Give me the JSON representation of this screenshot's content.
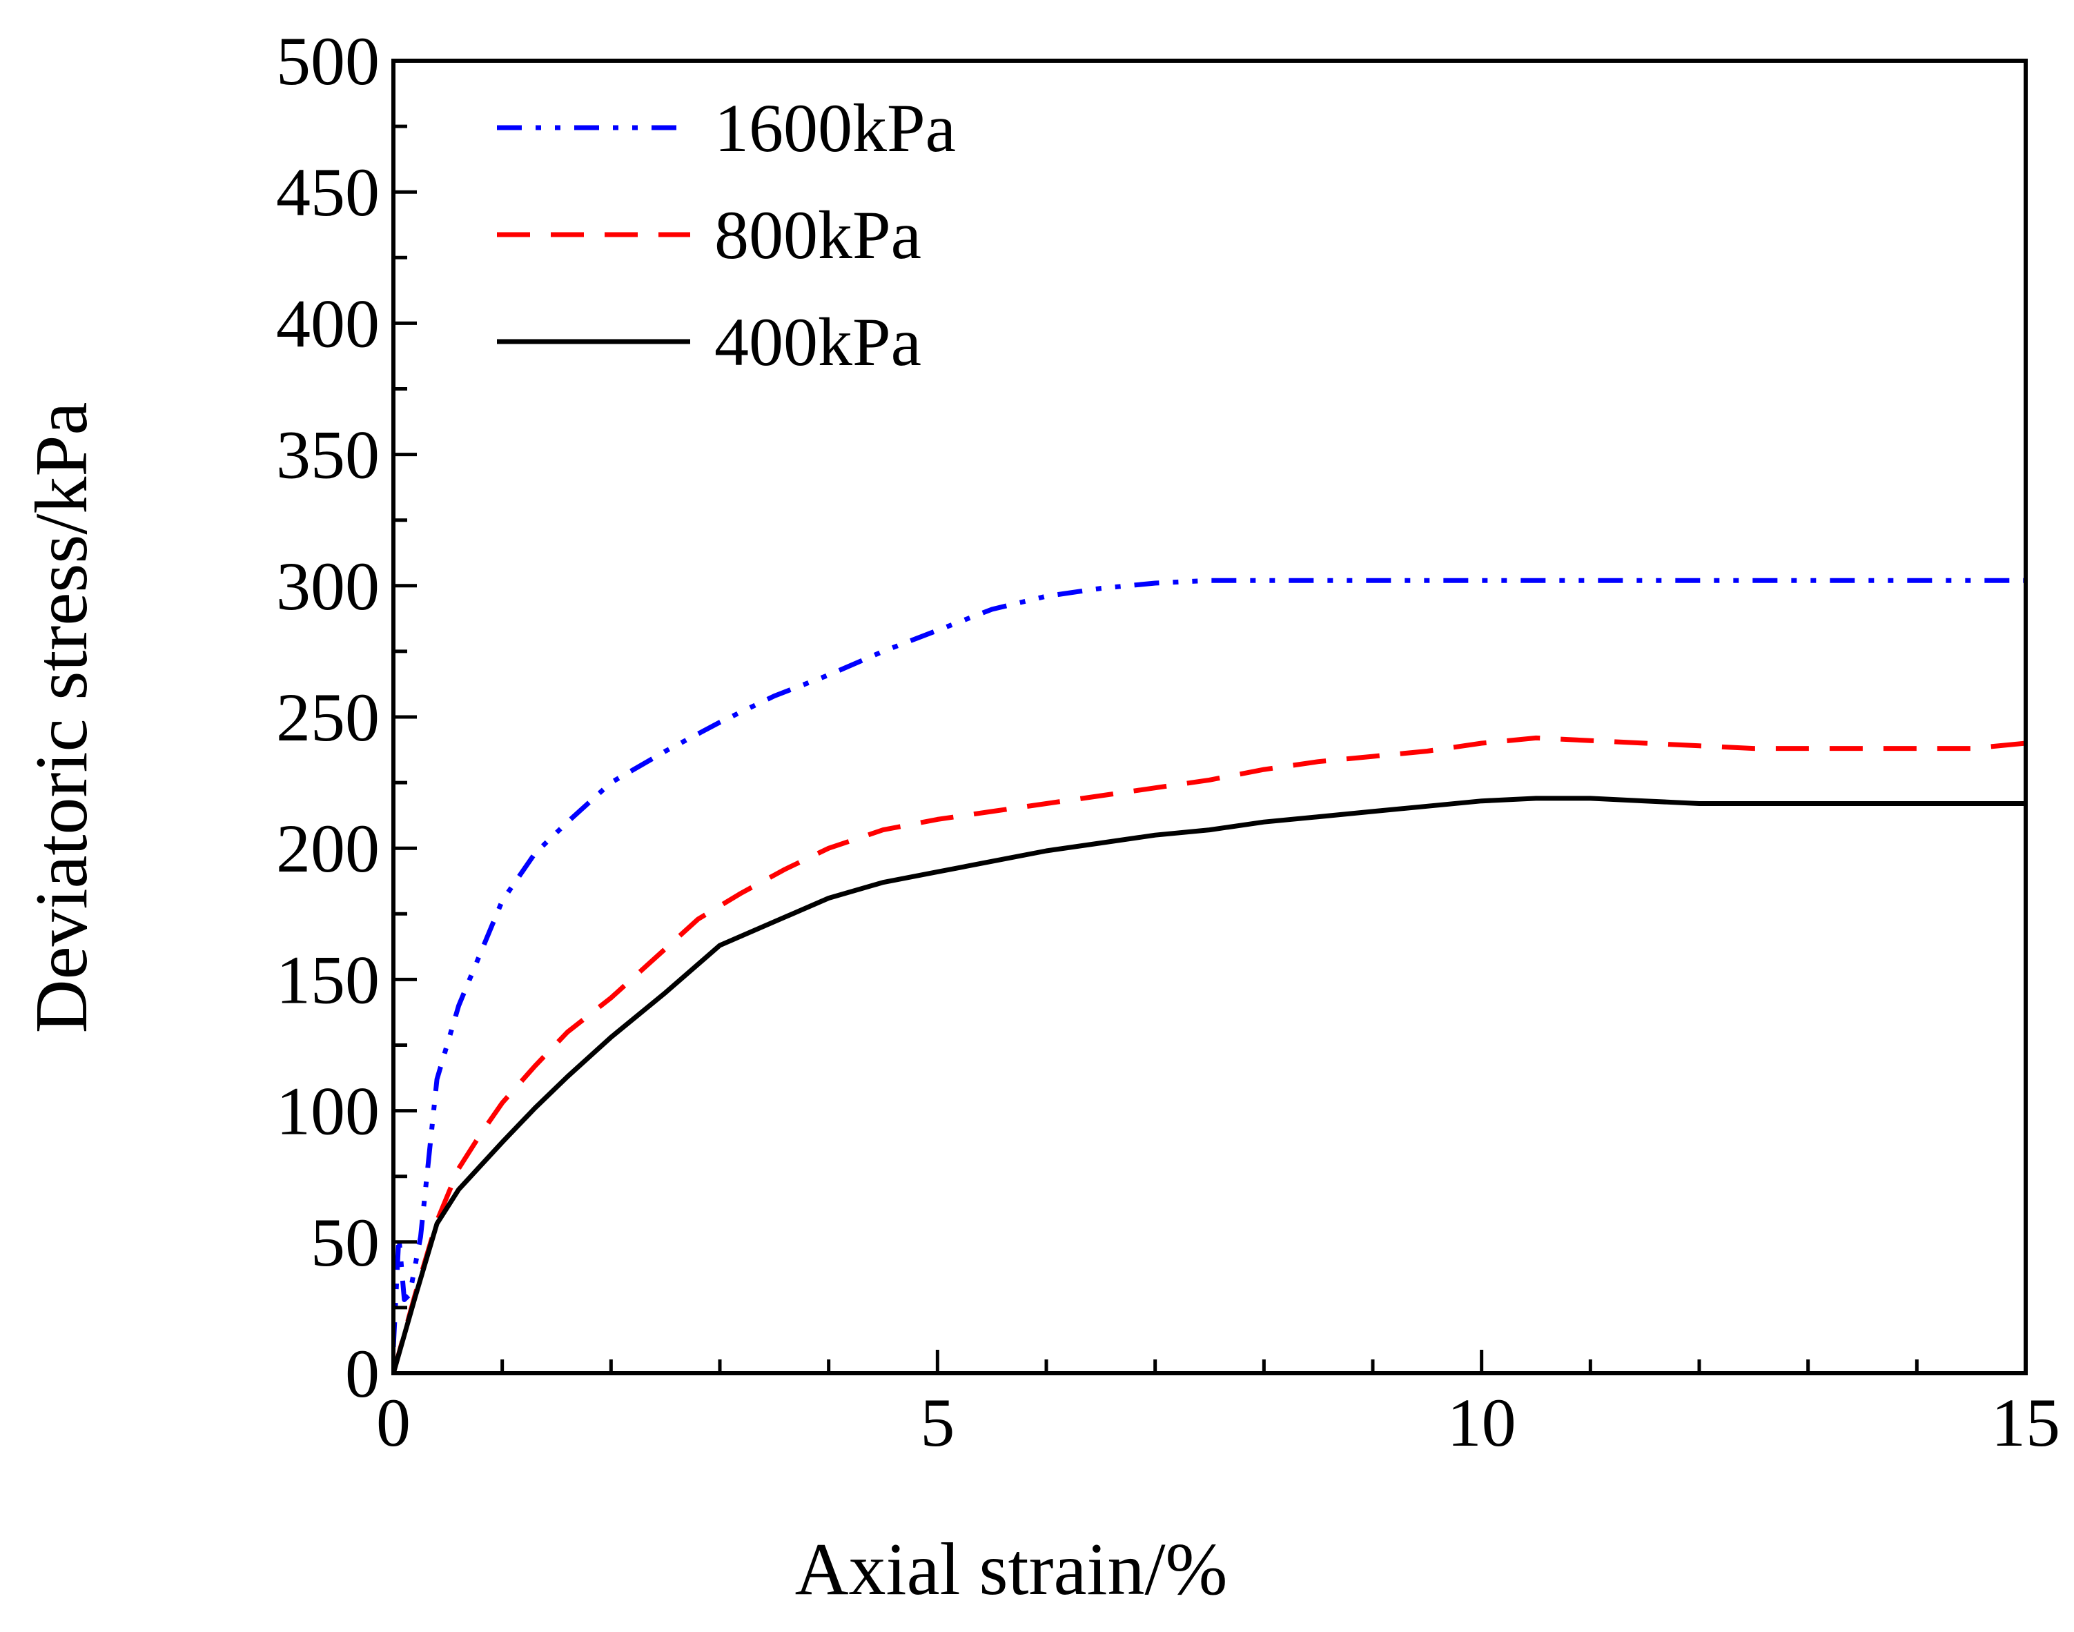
{
  "chart_data": {
    "type": "line",
    "title": "",
    "xlabel": "Axial strain/%",
    "ylabel": "Deviatoric stress/kPa",
    "xlim": [
      0,
      15
    ],
    "ylim": [
      0,
      500
    ],
    "xticks": [
      0,
      5,
      10,
      15
    ],
    "xtick_labels": [
      "0",
      "5",
      "10",
      "15"
    ],
    "yticks": [
      0,
      50,
      100,
      150,
      200,
      250,
      300,
      350,
      400,
      450,
      500
    ],
    "ytick_labels": [
      "0",
      "50",
      "100",
      "150",
      "200",
      "250",
      "300",
      "350",
      "400",
      "450",
      "500"
    ],
    "grid": false,
    "legend_position": "top-left",
    "series": [
      {
        "name": "1600kPa",
        "color": "#0000ff",
        "style": "dash-dot-dot",
        "x": [
          0,
          0.05,
          0.1,
          0.15,
          0.25,
          0.4,
          0.6,
          0.8,
          1.0,
          1.3,
          1.6,
          2.0,
          2.5,
          3.0,
          3.5,
          4.0,
          4.5,
          5.0,
          5.5,
          6.0,
          6.5,
          7.0,
          7.5,
          8.0,
          9.0,
          10.0,
          11.0,
          12.0,
          13.0,
          14.0,
          15.0
        ],
        "y": [
          10,
          52,
          28,
          30,
          52,
          112,
          140,
          160,
          180,
          198,
          210,
          225,
          237,
          248,
          258,
          266,
          275,
          283,
          291,
          296,
          299,
          301,
          302,
          302,
          302,
          302,
          302,
          302,
          302,
          302,
          302
        ]
      },
      {
        "name": "800kPa",
        "color": "#ff0000",
        "style": "dashed",
        "x": [
          0,
          0.2,
          0.4,
          0.6,
          0.8,
          1.0,
          1.3,
          1.6,
          2.0,
          2.4,
          2.8,
          3.2,
          3.6,
          4.0,
          4.5,
          5.0,
          5.5,
          6.0,
          6.5,
          7.0,
          7.5,
          8.0,
          8.5,
          9.0,
          9.5,
          10.0,
          10.5,
          11.0,
          11.5,
          12.0,
          12.5,
          13.0,
          13.5,
          14.0,
          14.5,
          15.0
        ],
        "y": [
          0,
          30,
          58,
          78,
          91,
          103,
          117,
          130,
          143,
          158,
          173,
          183,
          192,
          200,
          207,
          211,
          214,
          217,
          220,
          223,
          226,
          230,
          233,
          235,
          237,
          240,
          242,
          241,
          240,
          239,
          238,
          238,
          238,
          238,
          238,
          240
        ]
      },
      {
        "name": "400kPa",
        "color": "#000000",
        "style": "solid",
        "x": [
          0,
          0.2,
          0.4,
          0.6,
          0.8,
          1.0,
          1.3,
          1.6,
          2.0,
          2.5,
          3.0,
          3.5,
          4.0,
          4.5,
          5.0,
          5.5,
          6.0,
          6.5,
          7.0,
          7.5,
          8.0,
          8.5,
          9.0,
          9.5,
          10.0,
          10.5,
          11.0,
          11.5,
          12.0,
          12.5,
          13.0,
          14.0,
          15.0
        ],
        "y": [
          0,
          29,
          57,
          70,
          79,
          88,
          101,
          113,
          128,
          145,
          163,
          172,
          181,
          187,
          191,
          195,
          199,
          202,
          205,
          207,
          210,
          212,
          214,
          216,
          218,
          219,
          219,
          218,
          217,
          217,
          217,
          217,
          217
        ]
      }
    ]
  }
}
